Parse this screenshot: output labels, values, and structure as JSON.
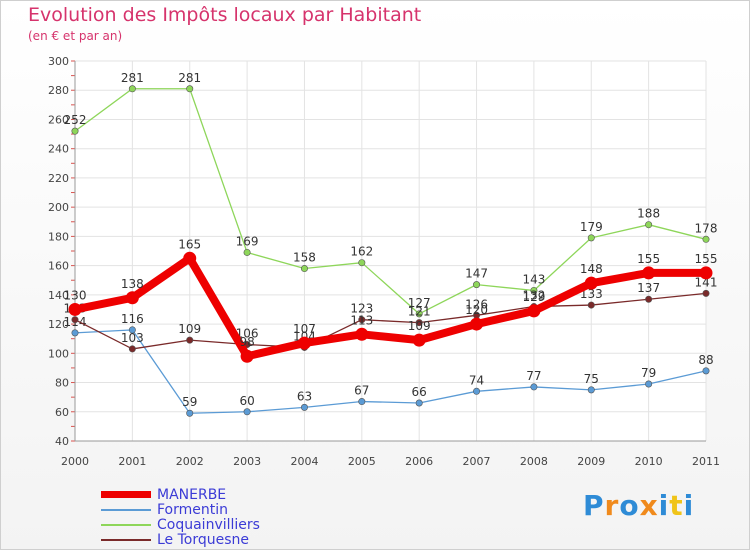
{
  "title": "Evolution des Impôts locaux par Habitant",
  "subtitle": "(en € et par an)",
  "logo": {
    "letters": [
      "P",
      "r",
      "o",
      "x",
      "i",
      "t",
      "i"
    ],
    "colors": [
      "#2e8bd6",
      "#f08a1c",
      "#2e8bd6",
      "#f08a1c",
      "#2e8bd6",
      "#f0c419",
      "#2e8bd6"
    ]
  },
  "chart_data": {
    "type": "line",
    "title": "Evolution des Impôts locaux par Habitant",
    "subtitle": "(en € et par an)",
    "xlabel": "",
    "ylabel": "",
    "x": [
      "2000",
      "2001",
      "2002",
      "2003",
      "2004",
      "2005",
      "2006",
      "2007",
      "2008",
      "2009",
      "2010",
      "2011"
    ],
    "ylim": [
      40,
      300
    ],
    "yticks": [
      40,
      60,
      80,
      100,
      120,
      140,
      160,
      180,
      200,
      220,
      240,
      260,
      280,
      300
    ],
    "grid": true,
    "legend": "bottom-left",
    "series": [
      {
        "name": "MANERBE",
        "color": "#ee0000",
        "values": [
          130,
          138,
          165,
          98,
          107,
          113,
          109,
          120,
          129,
          148,
          155,
          155
        ]
      },
      {
        "name": "Formentin",
        "color": "#5b9bd5",
        "values": [
          114,
          116,
          59,
          60,
          63,
          67,
          66,
          74,
          77,
          75,
          79,
          88
        ]
      },
      {
        "name": "Coquainvilliers",
        "color": "#8ed65a",
        "values": [
          252,
          281,
          281,
          169,
          158,
          162,
          127,
          147,
          143,
          179,
          188,
          178
        ]
      },
      {
        "name": "Le Torquesne",
        "color": "#7a2a2a",
        "values": [
          123,
          103,
          109,
          106,
          104,
          123,
          121,
          126,
          132,
          133,
          137,
          141
        ]
      }
    ]
  }
}
